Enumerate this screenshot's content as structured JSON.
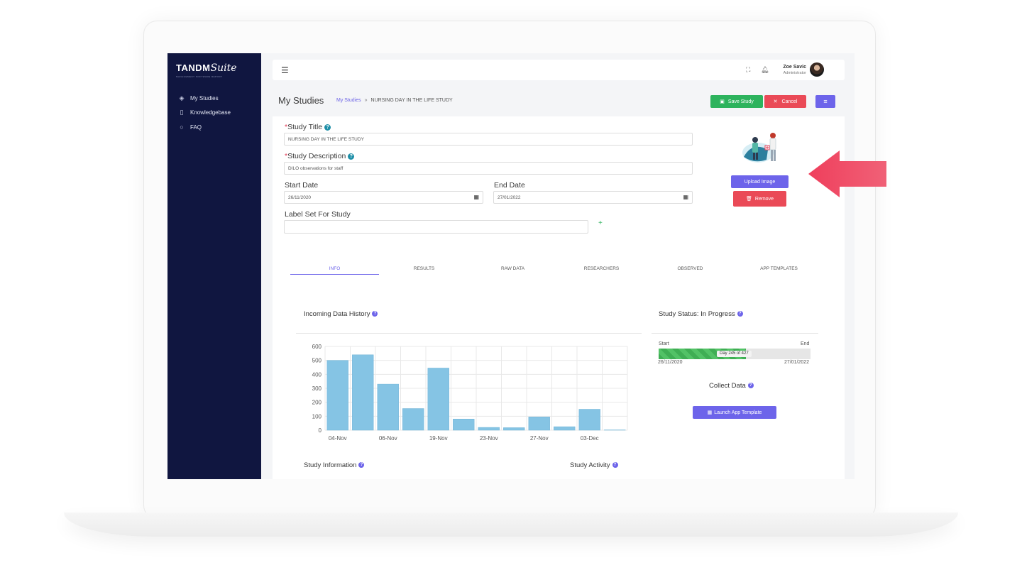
{
  "app": {
    "logo_main": "TANDM",
    "logo_script": "Suite",
    "logo_tagline": "MANAGEMENT SOFTWARE REPORT"
  },
  "sidebar": {
    "items": [
      {
        "label": "My Studies",
        "icon": "layers-icon"
      },
      {
        "label": "Knowledgebase",
        "icon": "bookmark-icon"
      },
      {
        "label": "FAQ",
        "icon": "chat-icon"
      }
    ]
  },
  "topbar": {
    "user_name": "Zoe Savic",
    "user_role": "Administrator"
  },
  "page": {
    "title": "My Studies",
    "breadcrumb_link": "My Studies",
    "breadcrumb_sep": "»",
    "breadcrumb_current": "NURSING DAY IN THE LIFE STUDY"
  },
  "actions": {
    "save": "Save Study",
    "cancel": "Cancel",
    "upload": "Upload Image",
    "remove": "Remove"
  },
  "form": {
    "title_label": "Study Title",
    "title_value": "NURSING DAY IN THE LIFE STUDY",
    "desc_label": "Study Description",
    "desc_value": "DILO observations for staff",
    "start_label": "Start Date",
    "start_value": "26/11/2020",
    "end_label": "End Date",
    "end_value": "27/01/2022",
    "labelset_label": "Label Set For Study",
    "labelset_value": "",
    "required_mark": "*",
    "add_symbol": "+"
  },
  "tabs": [
    {
      "label": "INFO",
      "active": true
    },
    {
      "label": "RESULTS",
      "active": false
    },
    {
      "label": "RAW DATA",
      "active": false
    },
    {
      "label": "RESEARCHERS",
      "active": false
    },
    {
      "label": "OBSERVED",
      "active": false
    },
    {
      "label": "APP TEMPLATES",
      "active": false
    }
  ],
  "sections": {
    "incoming": "Incoming Data History",
    "status": "Study Status: In Progress",
    "collect": "Collect Data",
    "launch": "Launch App Template",
    "info": "Study Information",
    "activity": "Study Activity"
  },
  "progress": {
    "start_label": "Start",
    "end_label": "End",
    "start_date": "26/11/2020",
    "end_date": "27/01/2022",
    "label": "Day 245 of 427",
    "current_day": 245,
    "total_days": 427,
    "fill_color": "#3fae54"
  },
  "colors": {
    "sidebar": "#101640",
    "accent": "#6d64ea",
    "success": "#2db35d",
    "danger": "#ea4a57",
    "bar": "#85c4e4",
    "arrow": "#ee4a63"
  },
  "chart_data": {
    "type": "bar",
    "categories": [
      "04-Nov",
      "",
      "06-Nov",
      "",
      "19-Nov",
      "",
      "23-Nov",
      "",
      "27-Nov",
      "",
      "03-Dec",
      ""
    ],
    "values": [
      500,
      540,
      330,
      155,
      445,
      80,
      20,
      18,
      95,
      25,
      150,
      2
    ],
    "ylim": [
      0,
      600
    ],
    "yticks": [
      0,
      100,
      200,
      300,
      400,
      500,
      600
    ],
    "grid": true,
    "title": "",
    "xlabel": "",
    "ylabel": ""
  }
}
